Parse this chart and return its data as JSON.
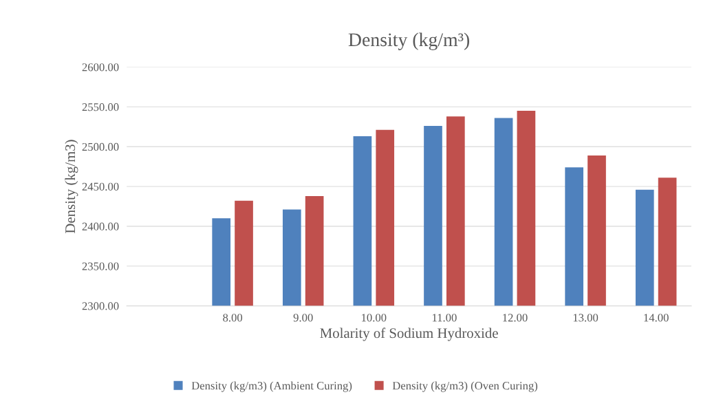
{
  "chart_data": {
    "type": "bar",
    "title": "Density (kg/m³)",
    "xlabel": "Molarity of Sodium Hydroxide",
    "ylabel": "Density (kg/m3)",
    "categories": [
      null,
      "8.00",
      "9.00",
      "10.00",
      "11.00",
      "12.00",
      "13.00",
      "14.00"
    ],
    "series": [
      {
        "name": "Density (kg/m3) (Ambient Curing)",
        "color": "#4f81bd",
        "values": [
          null,
          2410,
          2421,
          2513,
          2526,
          2536,
          2474,
          2446
        ]
      },
      {
        "name": "Density (kg/m3) (Oven Curing)",
        "color": "#c0504d",
        "values": [
          null,
          2432,
          2438,
          2521,
          2538,
          2545,
          2489,
          2461
        ]
      }
    ],
    "ylim": [
      2300,
      2600
    ],
    "yticks": [
      {
        "value": 2300,
        "label": "2300.00"
      },
      {
        "value": 2350,
        "label": "2350.00"
      },
      {
        "value": 2400,
        "label": "2400.00"
      },
      {
        "value": 2450,
        "label": "2450.00"
      },
      {
        "value": 2500,
        "label": "2500.00"
      },
      {
        "value": 2550,
        "label": "2550.00"
      },
      {
        "value": 2600,
        "label": "2600.00"
      }
    ],
    "grid": "y",
    "legend": "bottom"
  }
}
